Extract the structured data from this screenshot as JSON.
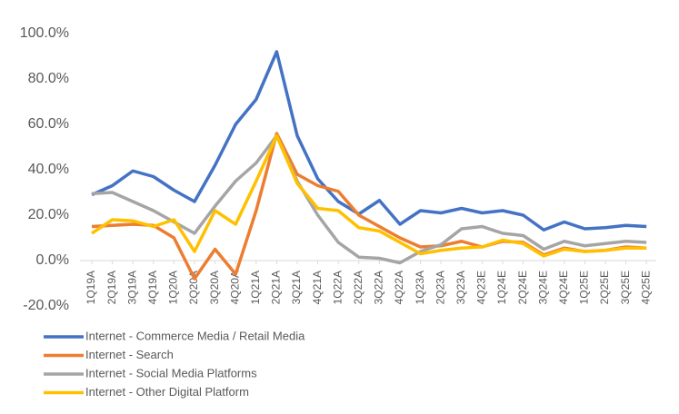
{
  "chart_data": {
    "type": "line",
    "categories": [
      "1Q19A",
      "2Q19A",
      "3Q19A",
      "4Q19A",
      "1Q20A",
      "2Q20A",
      "3Q20A",
      "4Q20A",
      "1Q21A",
      "2Q21A",
      "3Q21A",
      "4Q21A",
      "1Q22A",
      "2Q22A",
      "3Q22A",
      "4Q22A",
      "1Q23A",
      "2Q23A",
      "3Q23A",
      "4Q23E",
      "1Q24E",
      "2Q24E",
      "3Q24E",
      "4Q24E",
      "1Q25E",
      "2Q25E",
      "3Q25E",
      "4Q25E"
    ],
    "series": [
      {
        "name": "Internet - Commerce Media / Retail Media",
        "color": "#4472c4",
        "values": [
          29,
          33,
          39.5,
          37,
          31,
          26,
          42,
          60,
          71,
          92,
          55,
          36,
          26,
          20.5,
          26.5,
          16,
          22,
          21,
          23,
          21,
          22,
          20,
          13.5,
          17,
          14,
          14.5,
          15.5,
          15
        ]
      },
      {
        "name": "Internet - Search",
        "color": "#ed7d31",
        "values": [
          15,
          15.5,
          16,
          15.5,
          10,
          -8,
          5,
          -6,
          22,
          56,
          38,
          33,
          30.5,
          20,
          15,
          10,
          6,
          6.5,
          8.5,
          6,
          8.5,
          8,
          2.5,
          5.5,
          4,
          4.5,
          6,
          5.5
        ]
      },
      {
        "name": "Internet - Social Media Platforms",
        "color": "#a5a5a5",
        "values": [
          29.5,
          30,
          26,
          22,
          17,
          12,
          24,
          35,
          43,
          55,
          35,
          20,
          8,
          1.5,
          1,
          -1,
          4,
          7,
          14,
          15,
          12,
          11,
          5,
          8.5,
          6.5,
          7.5,
          8.5,
          8
        ]
      },
      {
        "name": "Internet - Other Digital Platform",
        "color": "#ffc000",
        "values": [
          12,
          18,
          17.5,
          15,
          18,
          4,
          22,
          16,
          35,
          55,
          34,
          23,
          22,
          14.5,
          13,
          8,
          3,
          4.5,
          5.5,
          6,
          9,
          7.5,
          2,
          5,
          4,
          4.5,
          5.5,
          5.5
        ]
      }
    ],
    "ylim": [
      -20,
      100
    ],
    "yticks": [
      {
        "value": -20,
        "label": "-20.0%"
      },
      {
        "value": 0,
        "label": "0.0%"
      },
      {
        "value": 20,
        "label": "20.0%"
      },
      {
        "value": 40,
        "label": "40.0%"
      },
      {
        "value": 60,
        "label": "60.0%"
      },
      {
        "value": 80,
        "label": "80.0%"
      },
      {
        "value": 100,
        "label": "100.0%"
      }
    ],
    "grid": false,
    "legend": "bottom-left"
  }
}
